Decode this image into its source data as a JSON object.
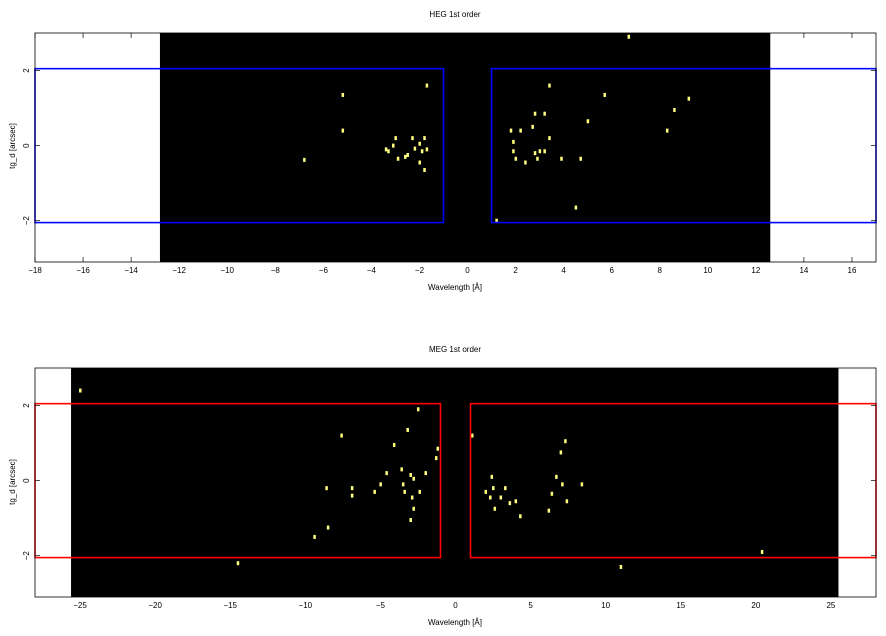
{
  "chart_data": [
    {
      "type": "scatter",
      "title": "HEG 1st order",
      "xlabel": "Wavelength [Å]",
      "ylabel": "tg_d [arcsec]",
      "xlim": [
        -18,
        17
      ],
      "ylim": [
        -3.1,
        3
      ],
      "x_ticks": [
        "−18",
        "−16",
        "−14",
        "−12",
        "−10",
        "−8",
        "−6",
        "−4",
        "−2",
        "0",
        "2",
        "4",
        "6",
        "8",
        "10",
        "12",
        "14",
        "16"
      ],
      "x_tick_values": [
        -18,
        -16,
        -14,
        -12,
        -10,
        -8,
        -6,
        -4,
        -2,
        0,
        2,
        4,
        6,
        8,
        10,
        12,
        14,
        16
      ],
      "y_ticks": [
        "−2",
        "0",
        "2"
      ],
      "y_tick_values": [
        -2,
        0,
        2
      ],
      "data_extent_x": [
        -12.8,
        12.6
      ],
      "background_color": "#000000",
      "region_color": "#0000ff",
      "point_color": "#ffff80",
      "regions": [
        {
          "x": [
            -18,
            -1
          ],
          "y": [
            -2.05,
            2.05
          ]
        },
        {
          "x": [
            1,
            17
          ],
          "y": [
            -2.05,
            2.05
          ]
        }
      ],
      "points": [
        {
          "x": -6.8,
          "y": -0.38
        },
        {
          "x": -5.2,
          "y": 1.35
        },
        {
          "x": -5.2,
          "y": 0.4
        },
        {
          "x": -3.4,
          "y": -0.1
        },
        {
          "x": -3.3,
          "y": -0.15
        },
        {
          "x": -3.1,
          "y": 0.0
        },
        {
          "x": -3.0,
          "y": 0.2
        },
        {
          "x": -2.9,
          "y": -0.35
        },
        {
          "x": -2.6,
          "y": -0.3
        },
        {
          "x": -2.5,
          "y": -0.25
        },
        {
          "x": -2.3,
          "y": 0.2
        },
        {
          "x": -2.2,
          "y": -0.08
        },
        {
          "x": -2.0,
          "y": 0.05
        },
        {
          "x": -1.9,
          "y": -0.15
        },
        {
          "x": -1.8,
          "y": 0.2
        },
        {
          "x": -1.7,
          "y": -0.1
        },
        {
          "x": -2.0,
          "y": -0.45
        },
        {
          "x": -1.8,
          "y": -0.65
        },
        {
          "x": -1.7,
          "y": 1.6
        },
        {
          "x": 1.2,
          "y": -2.0
        },
        {
          "x": 1.8,
          "y": 0.4
        },
        {
          "x": 1.9,
          "y": -0.15
        },
        {
          "x": 1.9,
          "y": 0.1
        },
        {
          "x": 2.0,
          "y": -0.35
        },
        {
          "x": 2.2,
          "y": 0.4
        },
        {
          "x": 2.4,
          "y": -0.45
        },
        {
          "x": 2.7,
          "y": 0.5
        },
        {
          "x": 2.8,
          "y": 0.85
        },
        {
          "x": 2.8,
          "y": -0.2
        },
        {
          "x": 2.9,
          "y": -0.35
        },
        {
          "x": 3.0,
          "y": -0.15
        },
        {
          "x": 3.2,
          "y": 0.85
        },
        {
          "x": 3.2,
          "y": -0.15
        },
        {
          "x": 3.4,
          "y": 0.2
        },
        {
          "x": 3.4,
          "y": 1.6
        },
        {
          "x": 3.9,
          "y": -0.35
        },
        {
          "x": 4.5,
          "y": -1.65
        },
        {
          "x": 4.7,
          "y": -0.35
        },
        {
          "x": 5.0,
          "y": 0.65
        },
        {
          "x": 5.7,
          "y": 1.35
        },
        {
          "x": 6.7,
          "y": 2.9
        },
        {
          "x": 8.3,
          "y": 0.4
        },
        {
          "x": 8.6,
          "y": 0.95
        },
        {
          "x": 9.2,
          "y": 1.25
        }
      ]
    },
    {
      "type": "scatter",
      "title": "MEG 1st order",
      "xlabel": "Wavelength [Å]",
      "ylabel": "tg_d [arcsec]",
      "xlim": [
        -28,
        28
      ],
      "ylim": [
        -3.1,
        3
      ],
      "x_ticks": [
        "−25",
        "−20",
        "−15",
        "−10",
        "−5",
        "0",
        "5",
        "10",
        "15",
        "20",
        "25"
      ],
      "x_tick_values": [
        -25,
        -20,
        -15,
        -10,
        -5,
        0,
        5,
        10,
        15,
        20,
        25
      ],
      "y_ticks": [
        "−2",
        "0",
        "2"
      ],
      "y_tick_values": [
        -2,
        0,
        2
      ],
      "data_extent_x": [
        -25.6,
        25.5
      ],
      "background_color": "#000000",
      "region_color": "#ff0000",
      "point_color": "#ffff80",
      "regions": [
        {
          "x": [
            -28,
            -1
          ],
          "y": [
            -2.05,
            2.05
          ]
        },
        {
          "x": [
            1,
            28
          ],
          "y": [
            -2.05,
            2.05
          ]
        }
      ],
      "points": [
        {
          "x": -25.0,
          "y": 2.4
        },
        {
          "x": -14.5,
          "y": -2.2
        },
        {
          "x": -9.4,
          "y": -1.5
        },
        {
          "x": -8.6,
          "y": -0.2
        },
        {
          "x": -8.5,
          "y": -1.25
        },
        {
          "x": -7.6,
          "y": 1.2
        },
        {
          "x": -6.9,
          "y": -0.4
        },
        {
          "x": -6.9,
          "y": -0.2
        },
        {
          "x": -5.4,
          "y": -0.3
        },
        {
          "x": -5.0,
          "y": -0.1
        },
        {
          "x": -4.6,
          "y": 0.2
        },
        {
          "x": -4.1,
          "y": 0.95
        },
        {
          "x": -3.6,
          "y": 0.3
        },
        {
          "x": -3.5,
          "y": -0.1
        },
        {
          "x": -3.4,
          "y": -0.3
        },
        {
          "x": -3.2,
          "y": 1.35
        },
        {
          "x": -3.0,
          "y": 0.15
        },
        {
          "x": -2.9,
          "y": -0.45
        },
        {
          "x": -2.8,
          "y": -0.75
        },
        {
          "x": -2.8,
          "y": 0.05
        },
        {
          "x": -2.5,
          "y": 1.9
        },
        {
          "x": -2.4,
          "y": -0.3
        },
        {
          "x": -3.0,
          "y": -1.05
        },
        {
          "x": -2.0,
          "y": 0.2
        },
        {
          "x": -1.3,
          "y": 0.6
        },
        {
          "x": -1.2,
          "y": 0.85
        },
        {
          "x": 1.1,
          "y": 1.2
        },
        {
          "x": 2.0,
          "y": -0.3
        },
        {
          "x": 2.3,
          "y": -0.45
        },
        {
          "x": 2.4,
          "y": 0.1
        },
        {
          "x": 2.5,
          "y": -0.2
        },
        {
          "x": 2.6,
          "y": -0.75
        },
        {
          "x": 3.0,
          "y": -0.45
        },
        {
          "x": 3.3,
          "y": -0.2
        },
        {
          "x": 3.6,
          "y": -0.6
        },
        {
          "x": 4.0,
          "y": -0.55
        },
        {
          "x": 4.3,
          "y": -0.95
        },
        {
          "x": 6.2,
          "y": -0.8
        },
        {
          "x": 6.4,
          "y": -0.35
        },
        {
          "x": 6.7,
          "y": 0.1
        },
        {
          "x": 7.0,
          "y": 0.75
        },
        {
          "x": 7.1,
          "y": -0.1
        },
        {
          "x": 7.3,
          "y": 1.05
        },
        {
          "x": 7.4,
          "y": -0.55
        },
        {
          "x": 8.4,
          "y": -0.1
        },
        {
          "x": 11.0,
          "y": -2.3
        },
        {
          "x": 20.4,
          "y": -1.9
        }
      ]
    }
  ]
}
